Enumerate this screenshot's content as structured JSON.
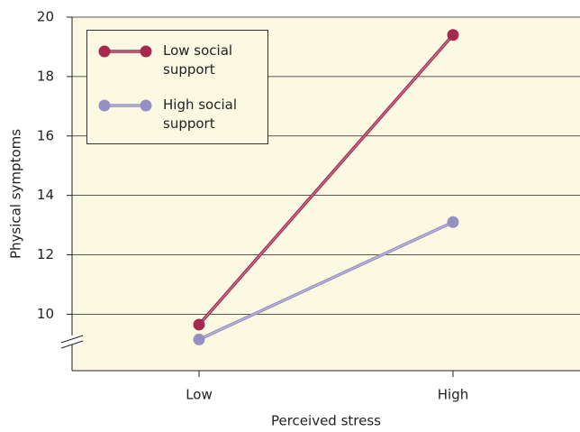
{
  "chart_data": {
    "type": "line",
    "categories": [
      "Low",
      "High"
    ],
    "series": [
      {
        "name": "Low social support",
        "color": "#a3294f",
        "values": [
          9.65,
          19.4
        ]
      },
      {
        "name": "High social support",
        "color": "#9590c2",
        "values": [
          9.15,
          13.1
        ]
      }
    ],
    "x_label": "Perceived stress",
    "y_label": "Physical symptoms",
    "ylim": [
      8.1,
      20
    ],
    "yticks": [
      10,
      12,
      14,
      16,
      18,
      20
    ],
    "grid": true,
    "legend": "upper left"
  }
}
